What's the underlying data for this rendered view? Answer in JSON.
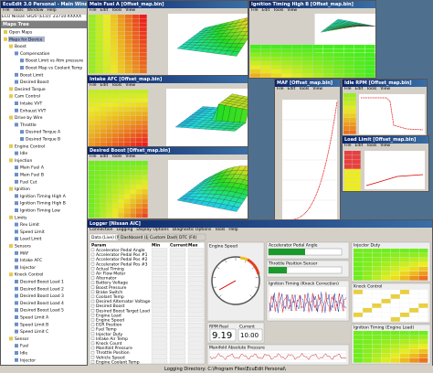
{
  "main_window": {
    "title": "EcuEdit 3.0 Personal - Main Window",
    "menu": [
      "File",
      "Tools",
      "Window",
      "Help"
    ],
    "tree_title": "Maps Tree",
    "tree": [
      "Open Maps",
      "Maps for Device",
      "Boost",
      "Compensation",
      "Boost Limit vs Atm pressure",
      "Boost Map vs Coolant Temp",
      "Boost Limit",
      "Desired Boost",
      "Desired Torque",
      "Cam Control",
      "Intake VVT",
      "Exhaust VVT",
      "Drive by Wire",
      "Throttle",
      "Desired Torque A",
      "Desired Torque B",
      "Engine Control",
      "Idle",
      "Injection",
      "Main Fuel A",
      "Main Fuel B",
      "Fuel Cut",
      "Ignition",
      "Ignition Timing High A",
      "Ignition Timing High B",
      "Ignition Timing Low",
      "Limits",
      "Rev Limit",
      "Speed Limit",
      "Load Limit",
      "Sensors",
      "MAF",
      "Intake AFC",
      "Injector",
      "Knock Control",
      "Desired Boost Load 1",
      "Desired Boost Load 2",
      "Desired Boost Load 3",
      "Desired Boost Load 4",
      "Desired Boost Load 5",
      "Speed Limit A",
      "Speed Limit B",
      "Speed Limit C",
      "Sensor",
      "Fuel",
      "Idle",
      "Injector"
    ],
    "status": "ECU Nissan SR20 (ECU): 23710-XXXXX"
  },
  "map_menu": [
    "File",
    "Edit",
    "Tools",
    "View"
  ],
  "windows": [
    {
      "title": "Main Fuel A [Offset_map.bin]"
    },
    {
      "title": "Ignition Timing High B [Offset_map.bin]"
    },
    {
      "title": "Intake AFC [Offset_map.bin]"
    },
    {
      "title": "Desired Boost [Offset_map.bin]"
    },
    {
      "title": "MAF [Offset_map.bin]"
    },
    {
      "title": "Idle RPM [Offset_map.bin]"
    },
    {
      "title": "Load Limit [Offset_map.bin]"
    }
  ],
  "logger": {
    "title": "Logger [Nissan AIC]",
    "menu": [
      "Connection",
      "Logging",
      "Display Options",
      "Diagnostic Options",
      "Tools",
      "Help"
    ],
    "tabs": [
      "Data (Live) [Nissan]",
      "Dashboard (Live)",
      "Custom Dash (Live)",
      "DTC (F4)"
    ],
    "list_header": [
      "Param",
      "Min",
      "Current",
      "Max"
    ],
    "params": [
      "Accelerator Pedal Angle",
      "Accelerator Pedal Pos #1",
      "Accelerator Pedal Pos #2",
      "Accelerator Pedal Pos #3",
      "Actual Timing",
      "Air Flow Meter",
      "Alternator",
      "Battery Voltage",
      "Boost Pressure",
      "Brake Switch",
      "Coolant Temp",
      "Desired Alternator Voltage",
      "Desired Boost",
      "Desired Boost Target Load",
      "Engine Load",
      "Engine Speed",
      "EGR Position",
      "Fuel Temp",
      "Injector Duty",
      "Intake Air Temp",
      "Knock Count",
      "Manifold Pressure",
      "Throttle Position",
      "Vehicle Speed",
      "Engine Coolant Temp"
    ],
    "gauge_title": "Engine Speed",
    "readout_label": "RPM Real",
    "readout_value": "9.19",
    "readout2_label": "Current",
    "readout2_value": "10.00",
    "bar_titles": [
      "Accelerator Pedal Angle",
      "Throttle Position Sensor"
    ],
    "chart_titles": [
      "Ignition Timing (Knock Correction)",
      "Manifold Absolute Pressure"
    ],
    "side_titles": [
      "Injector Duty",
      "Knock Control",
      "Ignition Timing (Engine Load)"
    ]
  },
  "statusbar": "Logging Directory: C:\\Program Files\\EcuEdit Personal\\"
}
